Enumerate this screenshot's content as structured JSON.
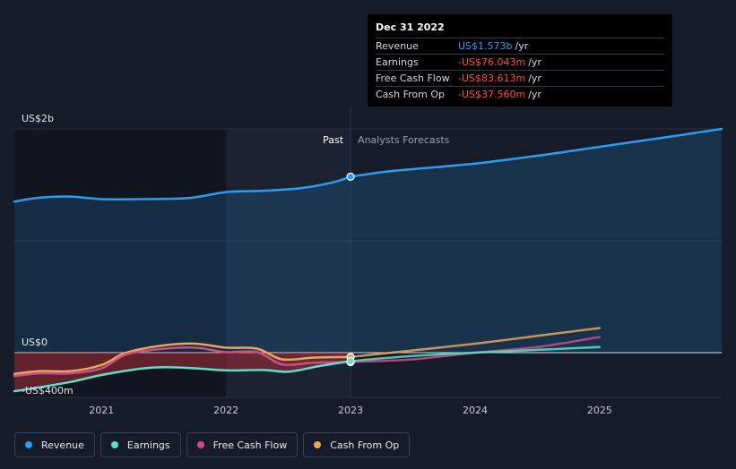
{
  "tooltip": {
    "date": "Dec 31 2022",
    "rows": [
      {
        "label": "Revenue",
        "value": "US$1.573b",
        "unit": "/yr",
        "color": "#2d9cef"
      },
      {
        "label": "Earnings",
        "value": "-US$76.043m",
        "unit": "/yr",
        "color": "#ff4b4b"
      },
      {
        "label": "Free Cash Flow",
        "value": "-US$83.613m",
        "unit": "/yr",
        "color": "#ff4b4b"
      },
      {
        "label": "Cash From Op",
        "value": "-US$37.560m",
        "unit": "/yr",
        "color": "#ff4b4b"
      }
    ]
  },
  "chart_data": {
    "type": "line",
    "y_tick_labels": [
      "US$2b",
      "US$0",
      "-US$400m"
    ],
    "past_label": "Past",
    "forecast_label": "Analysts Forecasts",
    "ylim": [
      -400,
      2000
    ],
    "xlim": [
      2020.3,
      2025.98
    ],
    "x_ticks": [
      {
        "value": 2021,
        "label": "2021"
      },
      {
        "value": 2022,
        "label": "2022"
      },
      {
        "value": 2023,
        "label": "2023"
      },
      {
        "value": 2024,
        "label": "2024"
      },
      {
        "value": 2025,
        "label": "2025"
      }
    ],
    "divider_x": 2023,
    "past_shade_start": 2022,
    "series": [
      {
        "name": "Revenue",
        "color": "#2d9cef",
        "points": [
          [
            2020.3,
            1350
          ],
          [
            2020.5,
            1385
          ],
          [
            2020.75,
            1395
          ],
          [
            2021.0,
            1372
          ],
          [
            2021.3,
            1372
          ],
          [
            2021.7,
            1382
          ],
          [
            2022.0,
            1435
          ],
          [
            2022.3,
            1447
          ],
          [
            2022.6,
            1470
          ],
          [
            2022.85,
            1520
          ],
          [
            2023.0,
            1573
          ],
          [
            2023.3,
            1620
          ],
          [
            2023.6,
            1650
          ],
          [
            2024.0,
            1690
          ],
          [
            2024.5,
            1760
          ],
          [
            2025.0,
            1840
          ],
          [
            2025.5,
            1920
          ],
          [
            2025.98,
            2000
          ]
        ]
      },
      {
        "name": "Earnings",
        "color": "#5ee0c8",
        "points": [
          [
            2020.3,
            -345
          ],
          [
            2020.5,
            -310
          ],
          [
            2020.75,
            -262
          ],
          [
            2021.0,
            -200
          ],
          [
            2021.3,
            -145
          ],
          [
            2021.5,
            -130
          ],
          [
            2021.75,
            -140
          ],
          [
            2022.0,
            -158
          ],
          [
            2022.3,
            -155
          ],
          [
            2022.5,
            -170
          ],
          [
            2022.75,
            -120
          ],
          [
            2023.0,
            -76
          ],
          [
            2023.5,
            -30
          ],
          [
            2024.0,
            0
          ],
          [
            2024.5,
            25
          ],
          [
            2025.0,
            50
          ]
        ]
      },
      {
        "name": "Free Cash Flow",
        "color": "#c94f8c",
        "points": [
          [
            2020.3,
            -210
          ],
          [
            2020.5,
            -185
          ],
          [
            2020.75,
            -185
          ],
          [
            2021.0,
            -140
          ],
          [
            2021.2,
            -15
          ],
          [
            2021.5,
            35
          ],
          [
            2021.75,
            45
          ],
          [
            2022.0,
            5
          ],
          [
            2022.25,
            5
          ],
          [
            2022.45,
            -105
          ],
          [
            2022.7,
            -90
          ],
          [
            2023.0,
            -84
          ],
          [
            2023.5,
            -60
          ],
          [
            2024.0,
            0
          ],
          [
            2024.5,
            50
          ],
          [
            2025.0,
            140
          ]
        ]
      },
      {
        "name": "Cash From Op",
        "color": "#e8a65c",
        "points": [
          [
            2020.3,
            -190
          ],
          [
            2020.5,
            -165
          ],
          [
            2020.75,
            -165
          ],
          [
            2021.0,
            -110
          ],
          [
            2021.2,
            0
          ],
          [
            2021.5,
            65
          ],
          [
            2021.75,
            80
          ],
          [
            2022.0,
            45
          ],
          [
            2022.25,
            35
          ],
          [
            2022.45,
            -60
          ],
          [
            2022.7,
            -45
          ],
          [
            2023.0,
            -38
          ],
          [
            2023.5,
            20
          ],
          [
            2024.0,
            80
          ],
          [
            2024.5,
            150
          ],
          [
            2025.0,
            220
          ]
        ]
      }
    ]
  },
  "legend": [
    {
      "label": "Revenue",
      "color": "#2d9cef"
    },
    {
      "label": "Earnings",
      "color": "#5ee0c8"
    },
    {
      "label": "Free Cash Flow",
      "color": "#c94f8c"
    },
    {
      "label": "Cash From Op",
      "color": "#e8a65c"
    }
  ]
}
